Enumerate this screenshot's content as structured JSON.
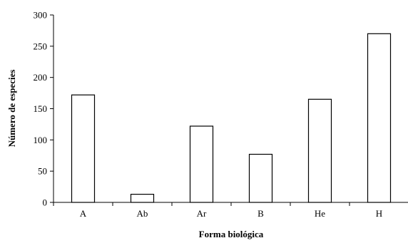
{
  "chart_data": {
    "type": "bar",
    "title": "",
    "xlabel": "Forma biológica",
    "ylabel": "Número de especies",
    "categories": [
      "A",
      "Ab",
      "Ar",
      "B",
      "He",
      "H"
    ],
    "values": [
      172,
      13,
      122,
      77,
      165,
      270
    ],
    "ylim": [
      0,
      300
    ],
    "yticks": [
      0,
      50,
      100,
      150,
      200,
      250,
      300
    ],
    "ytick_labels": [
      "0",
      "50",
      "100",
      "150",
      "200",
      "250",
      "300"
    ],
    "grid": false,
    "legend": "none",
    "bar_fill": "#ffffff",
    "bar_stroke": "#000000"
  }
}
